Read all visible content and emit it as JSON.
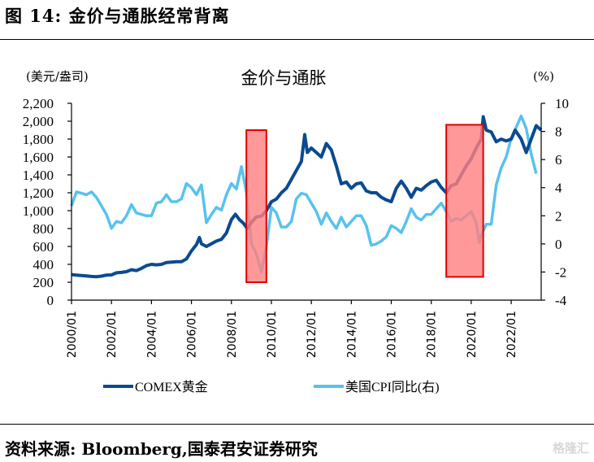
{
  "figure": {
    "title": "图 14:  金价与通胀经常背离",
    "source": "资料来源:  Bloomberg,国泰君安证券研究",
    "watermark": "格隆汇"
  },
  "chart_data": {
    "type": "line",
    "title": "金价与通胀",
    "ylabel_left": "(美元/盎司)",
    "ylabel_right": "(%)",
    "ylim_left": [
      0,
      2200
    ],
    "ylim_right": [
      -4,
      10
    ],
    "yticks_left": [
      "0",
      "200",
      "400",
      "600",
      "800",
      "1,000",
      "1,200",
      "1,400",
      "1,600",
      "1,800",
      "2,000",
      "2,200"
    ],
    "yticks_right": [
      "-4",
      "-2",
      "0",
      "2",
      "4",
      "6",
      "8",
      "10"
    ],
    "xlim": [
      2000.0,
      2023.5
    ],
    "xticks": [
      "2000/01",
      "2002/01",
      "2004/01",
      "2006/01",
      "2008/01",
      "2010/01",
      "2012/01",
      "2014/01",
      "2016/01",
      "2018/01",
      "2020/01",
      "2022/01"
    ],
    "xtick_values": [
      2000,
      2002,
      2004,
      2006,
      2008,
      2010,
      2012,
      2014,
      2016,
      2018,
      2020,
      2022
    ],
    "grid": false,
    "legend_position": "bottom",
    "colors": {
      "gold": "#0b4a91",
      "cpi": "#58c2ef",
      "highlight_fill": "#ff8080",
      "highlight_stroke": "#e00000"
    },
    "series": [
      {
        "name": "COMEX黄金",
        "axis": "left",
        "x": [
          2000.0,
          2000.25,
          2000.5,
          2000.75,
          2001.0,
          2001.25,
          2001.5,
          2001.75,
          2002.0,
          2002.25,
          2002.5,
          2002.75,
          2003.0,
          2003.25,
          2003.5,
          2003.75,
          2004.0,
          2004.25,
          2004.5,
          2004.75,
          2005.0,
          2005.25,
          2005.5,
          2005.75,
          2006.0,
          2006.25,
          2006.4,
          2006.5,
          2006.75,
          2007.0,
          2007.25,
          2007.5,
          2007.75,
          2008.0,
          2008.2,
          2008.4,
          2008.6,
          2008.8,
          2009.0,
          2009.25,
          2009.5,
          2009.75,
          2010.0,
          2010.25,
          2010.5,
          2010.75,
          2011.0,
          2011.25,
          2011.5,
          2011.67,
          2011.8,
          2012.0,
          2012.25,
          2012.5,
          2012.75,
          2013.0,
          2013.25,
          2013.5,
          2013.75,
          2014.0,
          2014.25,
          2014.5,
          2014.75,
          2015.0,
          2015.25,
          2015.5,
          2015.75,
          2016.0,
          2016.25,
          2016.5,
          2016.75,
          2017.0,
          2017.25,
          2017.5,
          2017.75,
          2018.0,
          2018.25,
          2018.5,
          2018.75,
          2019.0,
          2019.25,
          2019.5,
          2019.75,
          2020.0,
          2020.25,
          2020.5,
          2020.6,
          2020.75,
          2021.0,
          2021.25,
          2021.5,
          2021.75,
          2022.0,
          2022.2,
          2022.5,
          2022.75,
          2023.0,
          2023.25,
          2023.5
        ],
        "values": [
          285,
          280,
          275,
          270,
          265,
          262,
          268,
          280,
          282,
          305,
          310,
          318,
          340,
          330,
          355,
          385,
          400,
          395,
          400,
          420,
          425,
          430,
          430,
          460,
          550,
          620,
          700,
          630,
          600,
          630,
          660,
          680,
          750,
          900,
          960,
          900,
          860,
          800,
          870,
          930,
          940,
          1000,
          1100,
          1130,
          1200,
          1250,
          1350,
          1450,
          1550,
          1850,
          1650,
          1700,
          1650,
          1600,
          1750,
          1680,
          1500,
          1300,
          1320,
          1250,
          1300,
          1310,
          1220,
          1200,
          1200,
          1150,
          1120,
          1100,
          1250,
          1330,
          1250,
          1150,
          1250,
          1230,
          1280,
          1320,
          1340,
          1260,
          1200,
          1280,
          1300,
          1400,
          1500,
          1580,
          1700,
          1800,
          2050,
          1900,
          1880,
          1770,
          1800,
          1780,
          1800,
          1900,
          1800,
          1650,
          1800,
          1950,
          1900
        ]
      },
      {
        "name": "美国CPI同比(右)",
        "axis": "right",
        "x": [
          2000.0,
          2000.25,
          2000.5,
          2000.75,
          2001.0,
          2001.25,
          2001.5,
          2001.75,
          2002.0,
          2002.25,
          2002.5,
          2002.75,
          2003.0,
          2003.25,
          2003.5,
          2003.75,
          2004.0,
          2004.25,
          2004.5,
          2004.75,
          2005.0,
          2005.25,
          2005.5,
          2005.75,
          2006.0,
          2006.25,
          2006.5,
          2006.75,
          2007.0,
          2007.25,
          2007.5,
          2007.75,
          2008.0,
          2008.25,
          2008.5,
          2008.75,
          2009.0,
          2009.25,
          2009.5,
          2009.75,
          2010.0,
          2010.25,
          2010.5,
          2010.75,
          2011.0,
          2011.25,
          2011.5,
          2011.75,
          2012.0,
          2012.25,
          2012.5,
          2012.75,
          2013.0,
          2013.25,
          2013.5,
          2013.75,
          2014.0,
          2014.25,
          2014.5,
          2014.75,
          2015.0,
          2015.25,
          2015.5,
          2015.75,
          2016.0,
          2016.25,
          2016.5,
          2016.75,
          2017.0,
          2017.25,
          2017.5,
          2017.75,
          2018.0,
          2018.25,
          2018.5,
          2018.75,
          2019.0,
          2019.25,
          2019.5,
          2019.75,
          2020.0,
          2020.25,
          2020.4,
          2020.5,
          2020.75,
          2021.0,
          2021.25,
          2021.5,
          2021.75,
          2022.0,
          2022.25,
          2022.5,
          2022.75,
          2023.0,
          2023.25
        ],
        "values": [
          2.7,
          3.7,
          3.6,
          3.5,
          3.7,
          3.3,
          2.7,
          2.1,
          1.1,
          1.6,
          1.5,
          2.0,
          2.8,
          2.2,
          2.1,
          2.0,
          2.0,
          2.9,
          3.0,
          3.5,
          3.0,
          3.0,
          3.2,
          4.3,
          4.0,
          3.5,
          4.2,
          1.5,
          2.1,
          2.6,
          2.4,
          3.5,
          4.3,
          3.9,
          5.5,
          3.7,
          0.0,
          -0.7,
          -2.0,
          -0.2,
          2.6,
          2.2,
          1.2,
          1.2,
          1.6,
          3.2,
          3.6,
          3.5,
          2.9,
          2.3,
          1.4,
          2.2,
          1.6,
          1.1,
          1.9,
          1.2,
          1.6,
          2.0,
          2.0,
          1.3,
          -0.1,
          0.0,
          0.2,
          0.5,
          1.3,
          1.1,
          0.8,
          1.6,
          2.5,
          1.9,
          1.7,
          2.1,
          2.1,
          2.5,
          2.9,
          2.3,
          1.6,
          1.8,
          1.7,
          2.0,
          2.3,
          1.5,
          0.1,
          0.6,
          1.4,
          1.4,
          4.2,
          5.4,
          6.2,
          7.5,
          8.3,
          9.1,
          8.2,
          6.4,
          5.0
        ]
      }
    ],
    "highlights": [
      {
        "x_start": 2008.75,
        "x_end": 2009.75,
        "y_top": 1900,
        "y_bottom": 200
      },
      {
        "x_start": 2018.75,
        "x_end": 2020.6,
        "y_top": 1960,
        "y_bottom": 260
      }
    ],
    "legend": [
      "COMEX黄金",
      "美国CPI同比(右)"
    ]
  },
  "display": {
    "legend_gold": "COMEX黄金",
    "legend_cpi": "美国CPI同比(右)"
  }
}
